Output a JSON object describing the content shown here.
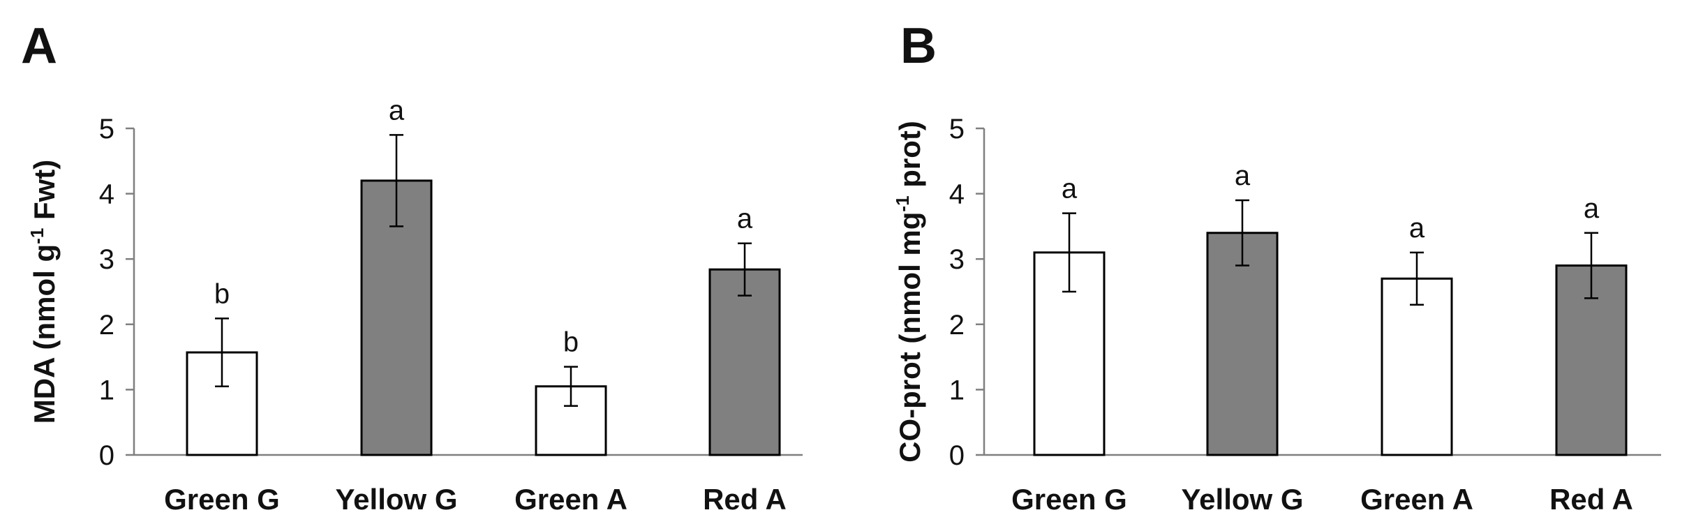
{
  "chart_data": [
    {
      "type": "bar",
      "panel": "A",
      "ylabel": "MDA (nmol g-1 Fwt)",
      "ylabel_parts": {
        "pre": "MDA (nmol g",
        "sup": "-1",
        "post": " Fwt)"
      },
      "ylim": [
        0,
        5
      ],
      "yticks": [
        0,
        1,
        2,
        3,
        4,
        5
      ],
      "categories": [
        "Green G",
        "Yellow G",
        "Green A",
        "Red A"
      ],
      "values": [
        1.57,
        4.2,
        1.05,
        2.84
      ],
      "errors": [
        0.52,
        0.7,
        0.3,
        0.4
      ],
      "letters": [
        "b",
        "a",
        "b",
        "a"
      ],
      "bar_colors": [
        "#ffffff",
        "#808080",
        "#ffffff",
        "#808080"
      ]
    },
    {
      "type": "bar",
      "panel": "B",
      "ylabel": "CO-prot (nmol mg-1 prot)",
      "ylabel_parts": {
        "pre": "CO-prot (nmol mg",
        "sup": "-1",
        "post": " prot)"
      },
      "ylim": [
        0,
        5
      ],
      "yticks": [
        0,
        1,
        2,
        3,
        4,
        5
      ],
      "categories": [
        "Green G",
        "Yellow G",
        "Green A",
        "Red A"
      ],
      "values": [
        3.1,
        3.4,
        2.7,
        2.9
      ],
      "errors": [
        0.6,
        0.5,
        0.4,
        0.5
      ],
      "letters": [
        "a",
        "a",
        "a",
        "a"
      ],
      "bar_colors": [
        "#ffffff",
        "#808080",
        "#ffffff",
        "#808080"
      ]
    }
  ]
}
